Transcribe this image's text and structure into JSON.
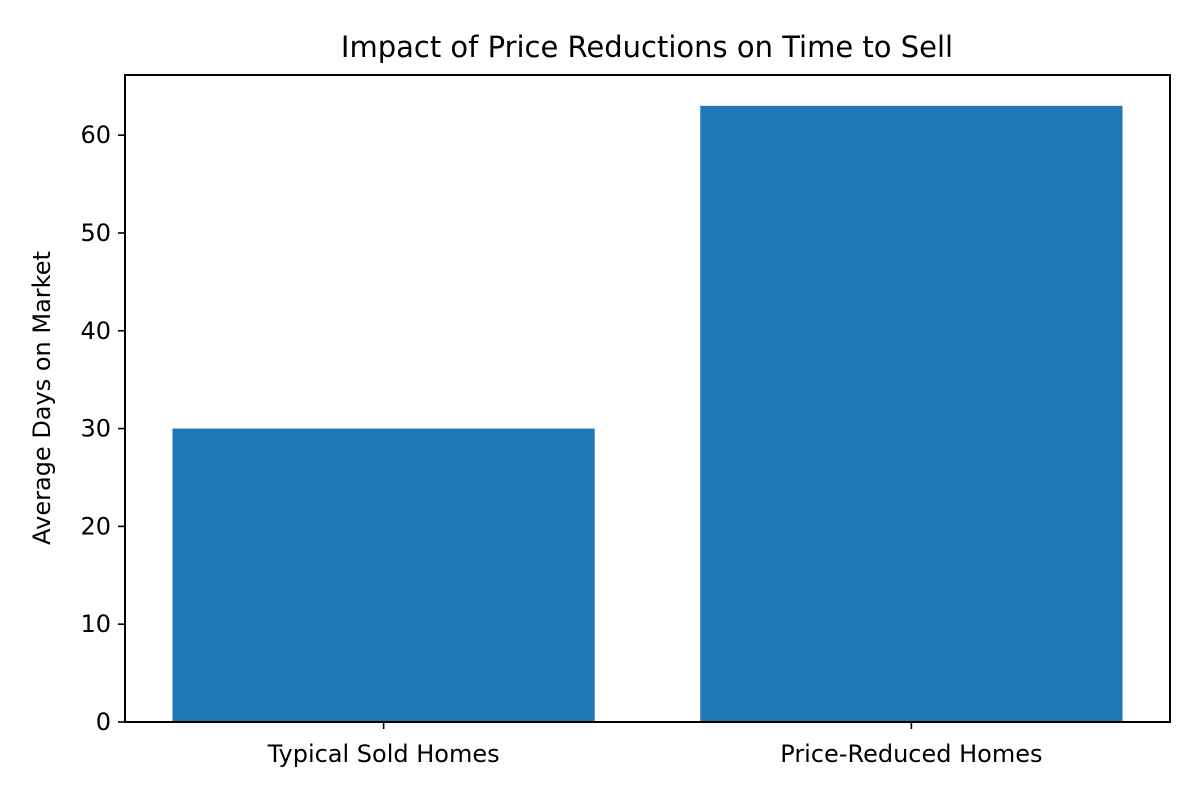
{
  "chart_data": {
    "type": "bar",
    "title": "Impact of Price Reductions on Time to Sell",
    "xlabel": "",
    "ylabel": "Average Days on Market",
    "categories": [
      "Typical Sold Homes",
      "Price-Reduced Homes"
    ],
    "values": [
      30,
      63
    ],
    "ylim": [
      0,
      66.15
    ],
    "yticks": [
      0,
      10,
      20,
      30,
      40,
      50,
      60
    ],
    "bar_color": "#1f77b4",
    "grid": false,
    "legend": "none"
  }
}
